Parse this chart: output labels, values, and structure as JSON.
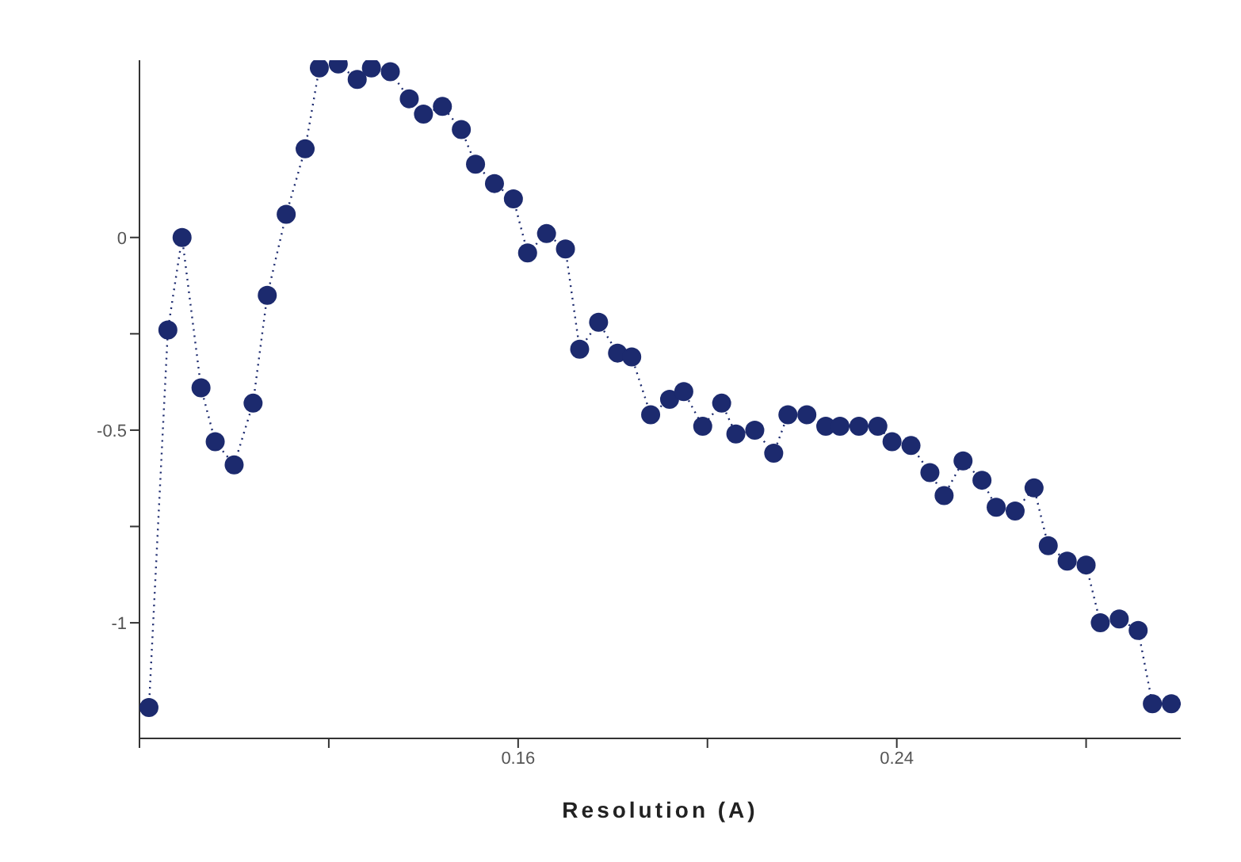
{
  "chart_data": {
    "type": "line",
    "xlabel": "Resolution (A)",
    "x": [
      0.082,
      0.086,
      0.089,
      0.093,
      0.096,
      0.1,
      0.104,
      0.107,
      0.111,
      0.115,
      0.118,
      0.122,
      0.126,
      0.129,
      0.133,
      0.137,
      0.14,
      0.144,
      0.148,
      0.151,
      0.155,
      0.159,
      0.162,
      0.166,
      0.17,
      0.173,
      0.177,
      0.181,
      0.184,
      0.188,
      0.192,
      0.195,
      0.199,
      0.203,
      0.206,
      0.21,
      0.214,
      0.217,
      0.221,
      0.225,
      0.228,
      0.232,
      0.236,
      0.239,
      0.243,
      0.247,
      0.25,
      0.254,
      0.258,
      0.261,
      0.265,
      0.269,
      0.272,
      0.276,
      0.28,
      0.283,
      0.287,
      0.291,
      0.294,
      0.298
    ],
    "series": [
      {
        "color": "#1c2a6e",
        "values": [
          -1.22,
          -0.24,
          0,
          -0.39,
          -0.53,
          -0.59,
          -0.43,
          -0.15,
          0.06,
          0.23,
          0.44,
          0.45,
          0.41,
          0.44,
          0.43,
          0.36,
          0.32,
          0.34,
          0.28,
          0.19,
          0.14,
          0.1,
          -0.04,
          0.01,
          -0.03,
          -0.29,
          -0.22,
          -0.3,
          -0.31,
          -0.46,
          -0.42,
          -0.4,
          -0.49,
          -0.43,
          -0.51,
          -0.5,
          -0.56,
          -0.46,
          -0.46,
          -0.49,
          -0.49,
          -0.49,
          -0.49,
          -0.53,
          -0.54,
          -0.61,
          -0.67,
          -0.58,
          -0.63,
          -0.7,
          -0.71,
          -0.65,
          -0.8,
          -0.84,
          -0.85,
          -1,
          -0.99,
          -1.02,
          -1.21,
          -1.21
        ]
      }
    ],
    "xlim": [
      0.08,
      0.3
    ],
    "xticks": [
      {
        "value": 0.08,
        "label": null
      },
      {
        "value": 0.12,
        "label": null
      },
      0.16,
      {
        "value": 0.2,
        "label": null
      },
      0.24,
      {
        "value": 0.28,
        "label": null
      }
    ],
    "ylim": [
      -1.3,
      0.46
    ],
    "yticks": [
      -1,
      {
        "value": -0.75,
        "label": null
      },
      -0.5,
      {
        "value": -0.25,
        "label": null
      },
      0
    ],
    "grid": false,
    "marker": "circle",
    "line_style": "dotted"
  }
}
